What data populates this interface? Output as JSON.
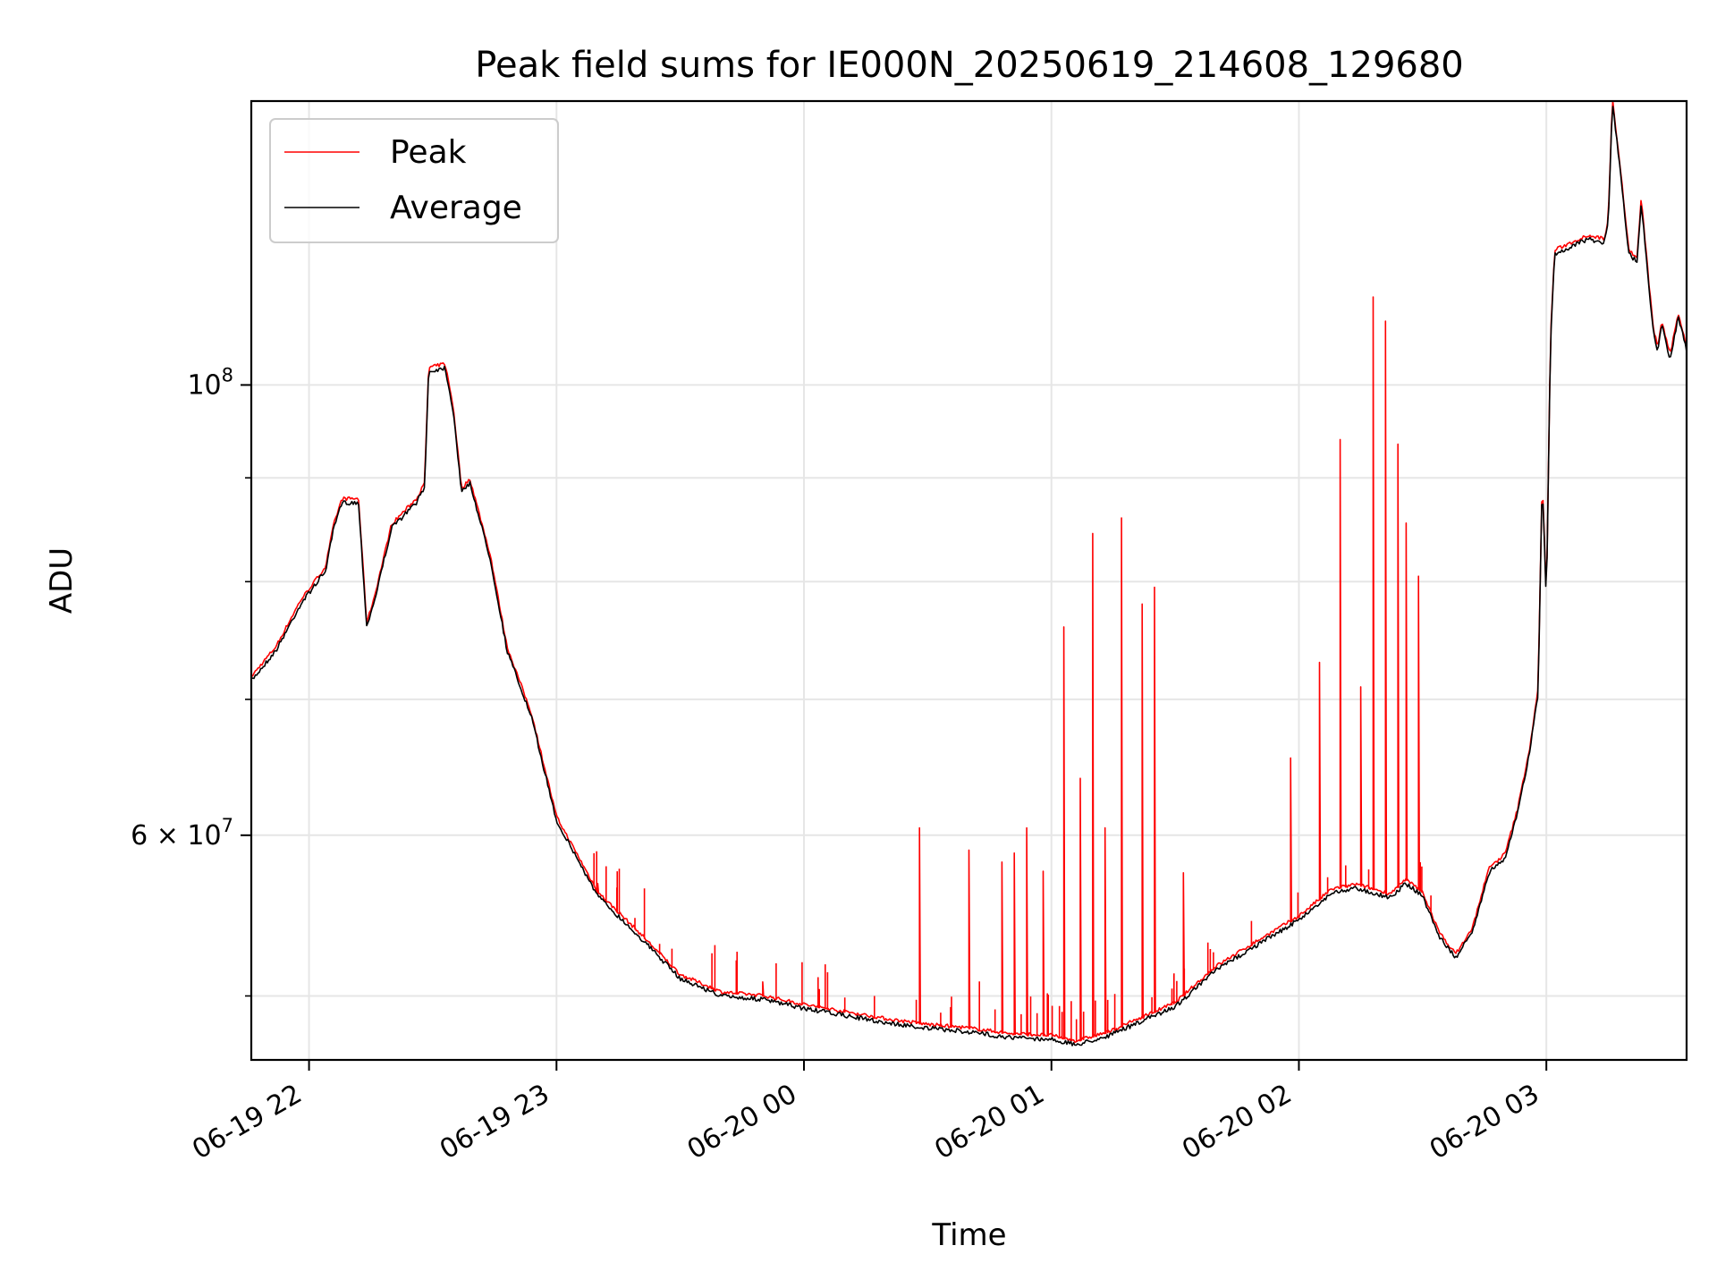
{
  "chart_data": {
    "type": "line",
    "title": "Peak field sums for IE000N_20250619_214608_129680",
    "xlabel": "Time",
    "ylabel": "ADU",
    "xlim": [
      "2025-06-19 21:46",
      "2025-06-20 03:34"
    ],
    "ylim": [
      46500000,
      138000000
    ],
    "yscale": "log",
    "grid": true,
    "legend_position": "top-left",
    "x_ticks": [
      {
        "label": "06-19 22",
        "time": "2025-06-19 22:00"
      },
      {
        "label": "06-19 23",
        "time": "2025-06-19 23:00"
      },
      {
        "label": "06-20 00",
        "time": "2025-06-20 00:00"
      },
      {
        "label": "06-20 01",
        "time": "2025-06-20 01:00"
      },
      {
        "label": "06-20 02",
        "time": "2025-06-20 02:00"
      },
      {
        "label": "06-20 03",
        "time": "2025-06-20 03:00"
      }
    ],
    "y_ticks_major": [
      {
        "value": 60000000,
        "label": "6 × 10^7"
      },
      {
        "value": 100000000,
        "label": "10^8"
      }
    ],
    "y_ticks_minor": [
      50000000,
      70000000,
      80000000,
      90000000
    ],
    "series": [
      {
        "name": "Average",
        "color": "#000000",
        "points": [
          [
            "2025-06-19 21:46",
            71500000
          ],
          [
            "2025-06-19 21:52",
            74000000
          ],
          [
            "2025-06-19 21:58",
            78000000
          ],
          [
            "2025-06-19 22:04",
            81000000
          ],
          [
            "2025-06-19 22:06",
            85000000
          ],
          [
            "2025-06-19 22:08",
            87500000
          ],
          [
            "2025-06-19 22:12",
            87500000
          ],
          [
            "2025-06-19 22:14",
            76000000
          ],
          [
            "2025-06-19 22:16",
            78500000
          ],
          [
            "2025-06-19 22:20",
            85000000
          ],
          [
            "2025-06-19 22:26",
            87500000
          ],
          [
            "2025-06-19 22:28",
            89000000
          ],
          [
            "2025-06-19 22:29",
            101500000
          ],
          [
            "2025-06-19 22:33",
            102000000
          ],
          [
            "2025-06-19 22:35",
            97000000
          ],
          [
            "2025-06-19 22:37",
            88500000
          ],
          [
            "2025-06-19 22:39",
            89500000
          ],
          [
            "2025-06-19 22:44",
            82000000
          ],
          [
            "2025-06-19 22:48",
            74000000
          ],
          [
            "2025-06-19 22:54",
            68500000
          ],
          [
            "2025-06-19 23:00",
            61000000
          ],
          [
            "2025-06-19 23:10",
            56000000
          ],
          [
            "2025-06-19 23:20",
            53500000
          ],
          [
            "2025-06-19 23:30",
            51000000
          ],
          [
            "2025-06-19 23:40",
            50000000
          ],
          [
            "2025-06-19 23:50",
            49800000
          ],
          [
            "2025-06-20 00:00",
            49300000
          ],
          [
            "2025-06-20 00:10",
            48900000
          ],
          [
            "2025-06-20 00:20",
            48500000
          ],
          [
            "2025-06-20 00:30",
            48200000
          ],
          [
            "2025-06-20 00:40",
            48000000
          ],
          [
            "2025-06-20 00:50",
            47700000
          ],
          [
            "2025-06-20 01:00",
            47600000
          ],
          [
            "2025-06-20 01:06",
            47300000
          ],
          [
            "2025-06-20 01:14",
            47800000
          ],
          [
            "2025-06-20 01:20",
            48400000
          ],
          [
            "2025-06-20 01:30",
            49400000
          ],
          [
            "2025-06-20 01:40",
            51500000
          ],
          [
            "2025-06-20 01:50",
            53000000
          ],
          [
            "2025-06-20 02:00",
            54500000
          ],
          [
            "2025-06-20 02:08",
            56200000
          ],
          [
            "2025-06-20 02:14",
            56500000
          ],
          [
            "2025-06-20 02:18",
            56200000
          ],
          [
            "2025-06-20 02:22",
            55900000
          ],
          [
            "2025-06-20 02:26",
            56800000
          ],
          [
            "2025-06-20 02:30",
            56000000
          ],
          [
            "2025-06-20 02:34",
            53500000
          ],
          [
            "2025-06-20 02:38",
            52200000
          ],
          [
            "2025-06-20 02:42",
            53700000
          ],
          [
            "2025-06-20 02:46",
            57500000
          ],
          [
            "2025-06-20 02:50",
            58500000
          ],
          [
            "2025-06-20 02:53",
            61500000
          ],
          [
            "2025-06-20 02:56",
            66000000
          ],
          [
            "2025-06-20 02:58",
            70500000
          ],
          [
            "2025-06-20 02:59",
            90000000
          ],
          [
            "2025-06-20 03:00",
            78000000
          ],
          [
            "2025-06-20 03:01",
            105000000
          ],
          [
            "2025-06-20 03:02",
            116000000
          ],
          [
            "2025-06-20 03:06",
            117000000
          ],
          [
            "2025-06-20 03:10",
            118000000
          ],
          [
            "2025-06-20 03:14",
            117500000
          ],
          [
            "2025-06-20 03:15",
            120000000
          ],
          [
            "2025-06-20 03:16",
            138000000
          ],
          [
            "2025-06-20 03:18",
            127000000
          ],
          [
            "2025-06-20 03:20",
            116000000
          ],
          [
            "2025-06-20 03:22",
            115000000
          ],
          [
            "2025-06-20 03:23",
            123000000
          ],
          [
            "2025-06-20 03:24",
            117000000
          ],
          [
            "2025-06-20 03:25",
            111000000
          ],
          [
            "2025-06-20 03:26",
            106000000
          ],
          [
            "2025-06-20 03:27",
            104000000
          ],
          [
            "2025-06-20 03:28",
            107000000
          ],
          [
            "2025-06-20 03:30",
            103000000
          ],
          [
            "2025-06-20 03:32",
            108000000
          ],
          [
            "2025-06-20 03:34",
            104000000
          ]
        ]
      },
      {
        "name": "Peak",
        "color": "#ff0000",
        "spikes": [
          [
            "2025-06-19 23:10",
            56800000
          ],
          [
            "2025-06-19 23:50",
            50800000
          ],
          [
            "2025-06-20 00:28",
            60500000
          ],
          [
            "2025-06-20 00:40",
            59000000
          ],
          [
            "2025-06-20 00:48",
            58200000
          ],
          [
            "2025-06-20 00:51",
            58800000
          ],
          [
            "2025-06-20 00:54",
            60500000
          ],
          [
            "2025-06-20 00:58",
            57600000
          ],
          [
            "2025-06-20 01:03",
            76000000
          ],
          [
            "2025-06-20 01:07",
            64000000
          ],
          [
            "2025-06-20 01:10",
            84500000
          ],
          [
            "2025-06-20 01:13",
            60500000
          ],
          [
            "2025-06-20 01:17",
            86000000
          ],
          [
            "2025-06-20 01:22",
            78000000
          ],
          [
            "2025-06-20 01:25",
            79500000
          ],
          [
            "2025-06-20 01:32",
            57500000
          ],
          [
            "2025-06-20 01:58",
            65500000
          ],
          [
            "2025-06-20 02:05",
            73000000
          ],
          [
            "2025-06-20 02:10",
            94000000
          ],
          [
            "2025-06-20 02:15",
            71000000
          ],
          [
            "2025-06-20 02:18",
            110500000
          ],
          [
            "2025-06-20 02:21",
            107500000
          ],
          [
            "2025-06-20 02:24",
            93500000
          ],
          [
            "2025-06-20 02:26",
            85500000
          ],
          [
            "2025-06-20 02:29",
            80500000
          ]
        ]
      }
    ]
  }
}
